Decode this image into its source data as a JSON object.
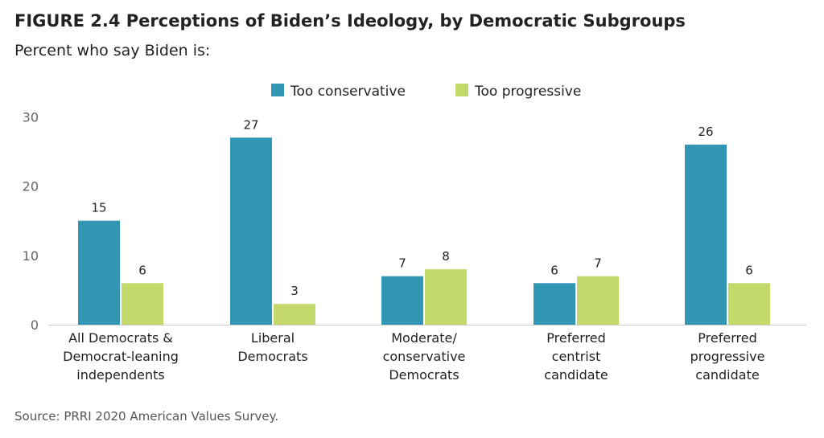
{
  "title": "FIGURE 2.4  Perceptions of Biden’s Ideology, by Democratic Subgroups",
  "subtitle": "Percent who say Biden is:",
  "source": "Source: PRRI 2020 American Values Survey.",
  "chart_data": {
    "type": "bar",
    "categories": [
      [
        "All Democrats &",
        "Democrat-leaning",
        "independents"
      ],
      [
        "Liberal",
        "Democrats"
      ],
      [
        "Moderate/",
        "conservative",
        "Democrats"
      ],
      [
        "Preferred",
        "centrist",
        "candidate"
      ],
      [
        "Preferred",
        "progressive",
        "candidate"
      ]
    ],
    "series": [
      {
        "name": "Too conservative",
        "color": "#3196b3",
        "values": [
          15,
          27,
          7,
          6,
          26
        ]
      },
      {
        "name": "Too progressive",
        "color": "#c4d96b",
        "values": [
          6,
          3,
          8,
          7,
          6
        ]
      }
    ],
    "yticks": [
      0,
      10,
      20,
      30
    ],
    "ylim": [
      0,
      30
    ],
    "legend_position": "top-center",
    "grid": false
  }
}
